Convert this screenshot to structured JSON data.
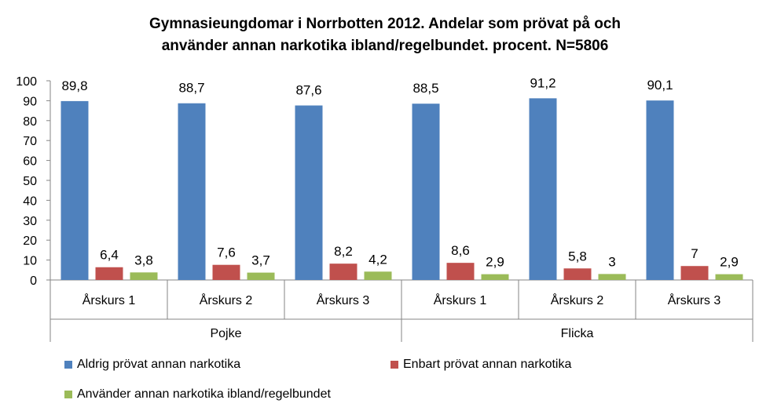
{
  "chart_data": {
    "type": "bar",
    "title_line1": "Gymnasieungdomar i Norrbotten 2012. Andelar som prövat på och",
    "title_line2": "använder annan narkotika ibland/regelbundet. procent. N=5806",
    "groups": [
      "Pojke",
      "Flicka"
    ],
    "categories": [
      "Årskurs 1",
      "Årskurs 2",
      "Årskurs 3",
      "Årskurs 1",
      "Årskurs 2",
      "Årskurs 3"
    ],
    "ylim": [
      0,
      100
    ],
    "yticks": [
      "0",
      "10",
      "20",
      "30",
      "40",
      "50",
      "60",
      "70",
      "80",
      "90",
      "100"
    ],
    "grid": false,
    "legend_position": "bottom",
    "series": [
      {
        "name": "Aldrig prövat annan narkotika",
        "color": "#4F81BD",
        "values": [
          89.8,
          88.7,
          87.6,
          88.5,
          91.2,
          90.1
        ],
        "labels": [
          "89,8",
          "88,7",
          "87,6",
          "88,5",
          "91,2",
          "90,1"
        ]
      },
      {
        "name": "Enbart prövat annan narkotika",
        "color": "#C0504D",
        "values": [
          6.4,
          7.6,
          8.2,
          8.6,
          5.8,
          7
        ],
        "labels": [
          "6,4",
          "7,6",
          "8,2",
          "8,6",
          "5,8",
          "7"
        ]
      },
      {
        "name": "Använder annan narkotika ibland/regelbundet",
        "color": "#9BBB59",
        "values": [
          3.8,
          3.7,
          4.2,
          2.9,
          3,
          2.9
        ],
        "labels": [
          "3,8",
          "3,7",
          "4,2",
          "2,9",
          "3",
          "2,9"
        ]
      }
    ]
  }
}
